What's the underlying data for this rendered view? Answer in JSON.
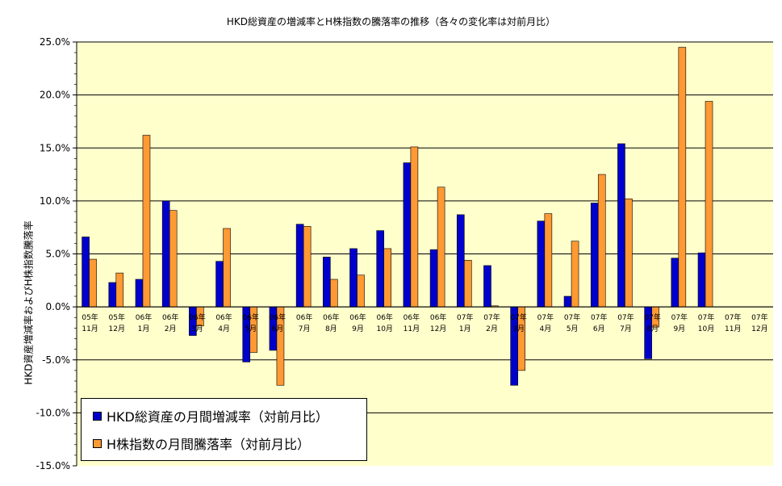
{
  "chart_data": {
    "type": "bar",
    "title": "HKD総資産の増減率とH株指数の騰落率の推移（各々の変化率は対前月比）",
    "xlabel": "",
    "ylabel": "HKD資産増減率およびH株指数騰落率",
    "ylim": [
      -15,
      25
    ],
    "ytick_step": 5,
    "ytick_labels": [
      "25.0%",
      "20.0%",
      "15.0%",
      "10.0%",
      "5.0%",
      "0.0%",
      "-5.0%",
      "-10.0%",
      "-15.0%"
    ],
    "grid": true,
    "legend_position": "bottom-left",
    "plot_background": "#ffffcc",
    "categories": [
      [
        "05年",
        "11月"
      ],
      [
        "05年",
        "12月"
      ],
      [
        "06年",
        "1月"
      ],
      [
        "06年",
        "2月"
      ],
      [
        "06年",
        "3月"
      ],
      [
        "06年",
        "4月"
      ],
      [
        "06年",
        "5月"
      ],
      [
        "06年",
        "6月"
      ],
      [
        "06年",
        "7月"
      ],
      [
        "06年",
        "8月"
      ],
      [
        "06年",
        "9月"
      ],
      [
        "06年",
        "10月"
      ],
      [
        "06年",
        "11月"
      ],
      [
        "06年",
        "12月"
      ],
      [
        "07年",
        "1月"
      ],
      [
        "07年",
        "2月"
      ],
      [
        "07年",
        "3月"
      ],
      [
        "07年",
        "4月"
      ],
      [
        "07年",
        "5月"
      ],
      [
        "07年",
        "6月"
      ],
      [
        "07年",
        "7月"
      ],
      [
        "07年",
        "8月"
      ],
      [
        "07年",
        "9月"
      ],
      [
        "07年",
        "10月"
      ],
      [
        "07年",
        "11月"
      ],
      [
        "07年",
        "12月"
      ]
    ],
    "series": [
      {
        "name": "HKD総資産の月間増減率（対前月比）",
        "color": "#0000cc",
        "values": [
          6.6,
          2.3,
          2.6,
          10.0,
          -2.7,
          4.3,
          -5.2,
          -4.1,
          7.8,
          4.7,
          5.5,
          7.2,
          13.6,
          5.4,
          8.7,
          3.9,
          -7.4,
          8.1,
          1.0,
          9.8,
          15.4,
          -4.9,
          4.6,
          5.1,
          null,
          null
        ]
      },
      {
        "name": "H株指数の月間騰落率（対前月比）",
        "color": "#ff9933",
        "values": [
          4.5,
          3.2,
          16.2,
          9.1,
          -1.8,
          7.4,
          -4.3,
          -7.4,
          7.6,
          2.6,
          3.0,
          5.5,
          15.1,
          11.3,
          4.4,
          0.1,
          -6.0,
          8.8,
          6.2,
          12.5,
          10.2,
          -1.9,
          24.5,
          19.4,
          null,
          null
        ]
      }
    ]
  }
}
